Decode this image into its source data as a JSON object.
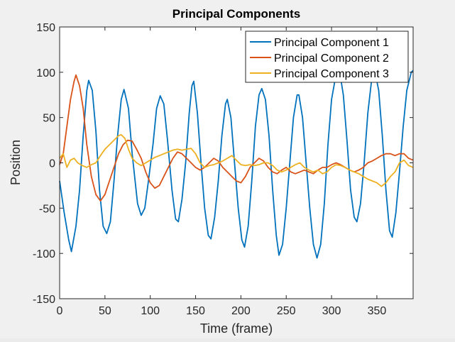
{
  "chart_data": {
    "type": "line",
    "title": "Principal Components",
    "xlabel": "Time (frame)",
    "ylabel": "Position",
    "xlim": [
      0,
      390
    ],
    "ylim": [
      -150,
      150
    ],
    "xticks": [
      0,
      50,
      100,
      150,
      200,
      250,
      300,
      350
    ],
    "yticks": [
      -150,
      -100,
      -50,
      0,
      50,
      100,
      150
    ],
    "grid": false,
    "legend_position": "top-right",
    "series": [
      {
        "name": "Principal Component 1",
        "color": "#0072bd",
        "points": [
          [
            0,
            -20
          ],
          [
            5,
            -55
          ],
          [
            10,
            -85
          ],
          [
            13,
            -98
          ],
          [
            18,
            -70
          ],
          [
            22,
            -30
          ],
          [
            26,
            30
          ],
          [
            30,
            80
          ],
          [
            32,
            91
          ],
          [
            36,
            80
          ],
          [
            40,
            35
          ],
          [
            44,
            -30
          ],
          [
            48,
            -70
          ],
          [
            52,
            -78
          ],
          [
            56,
            -65
          ],
          [
            60,
            -20
          ],
          [
            64,
            30
          ],
          [
            68,
            70
          ],
          [
            71,
            81
          ],
          [
            76,
            60
          ],
          [
            80,
            10
          ],
          [
            86,
            -45
          ],
          [
            90,
            -58
          ],
          [
            94,
            -50
          ],
          [
            98,
            -20
          ],
          [
            103,
            20
          ],
          [
            107,
            60
          ],
          [
            111,
            74
          ],
          [
            115,
            65
          ],
          [
            119,
            25
          ],
          [
            124,
            -30
          ],
          [
            128,
            -62
          ],
          [
            131,
            -65
          ],
          [
            135,
            -40
          ],
          [
            139,
            0
          ],
          [
            143,
            55
          ],
          [
            146,
            85
          ],
          [
            148,
            90
          ],
          [
            152,
            55
          ],
          [
            156,
            0
          ],
          [
            160,
            -50
          ],
          [
            164,
            -80
          ],
          [
            167,
            -84
          ],
          [
            171,
            -60
          ],
          [
            175,
            -20
          ],
          [
            179,
            30
          ],
          [
            183,
            65
          ],
          [
            185,
            70
          ],
          [
            189,
            50
          ],
          [
            193,
            0
          ],
          [
            197,
            -50
          ],
          [
            201,
            -85
          ],
          [
            204,
            -93
          ],
          [
            208,
            -70
          ],
          [
            212,
            -20
          ],
          [
            216,
            40
          ],
          [
            220,
            75
          ],
          [
            223,
            82
          ],
          [
            227,
            70
          ],
          [
            231,
            30
          ],
          [
            235,
            -30
          ],
          [
            239,
            -80
          ],
          [
            242,
            -102
          ],
          [
            246,
            -90
          ],
          [
            250,
            -50
          ],
          [
            254,
            0
          ],
          [
            258,
            50
          ],
          [
            262,
            75
          ],
          [
            264,
            75
          ],
          [
            268,
            50
          ],
          [
            272,
            0
          ],
          [
            276,
            -50
          ],
          [
            280,
            -90
          ],
          [
            284,
            -105
          ],
          [
            288,
            -90
          ],
          [
            292,
            -45
          ],
          [
            296,
            20
          ],
          [
            300,
            70
          ],
          [
            305,
            98
          ],
          [
            309,
            100
          ],
          [
            313,
            75
          ],
          [
            317,
            25
          ],
          [
            321,
            -30
          ],
          [
            325,
            -60
          ],
          [
            328,
            -65
          ],
          [
            332,
            -45
          ],
          [
            336,
            0
          ],
          [
            340,
            55
          ],
          [
            344,
            90
          ],
          [
            348,
            100
          ],
          [
            352,
            80
          ],
          [
            356,
            30
          ],
          [
            360,
            -30
          ],
          [
            364,
            -75
          ],
          [
            367,
            -82
          ],
          [
            371,
            -55
          ],
          [
            375,
            -10
          ],
          [
            379,
            40
          ],
          [
            383,
            80
          ],
          [
            388,
            100
          ],
          [
            390,
            102
          ]
        ]
      },
      {
        "name": "Principal Component 2",
        "color": "#d95319",
        "points": [
          [
            0,
            -2
          ],
          [
            4,
            10
          ],
          [
            8,
            40
          ],
          [
            12,
            70
          ],
          [
            16,
            90
          ],
          [
            18,
            97
          ],
          [
            22,
            85
          ],
          [
            26,
            60
          ],
          [
            30,
            20
          ],
          [
            35,
            -15
          ],
          [
            40,
            -35
          ],
          [
            45,
            -42
          ],
          [
            50,
            -35
          ],
          [
            55,
            -20
          ],
          [
            60,
            -5
          ],
          [
            65,
            10
          ],
          [
            70,
            20
          ],
          [
            75,
            25
          ],
          [
            80,
            24
          ],
          [
            85,
            15
          ],
          [
            90,
            5
          ],
          [
            95,
            -10
          ],
          [
            100,
            -22
          ],
          [
            105,
            -28
          ],
          [
            110,
            -25
          ],
          [
            115,
            -15
          ],
          [
            120,
            -5
          ],
          [
            125,
            5
          ],
          [
            130,
            12
          ],
          [
            135,
            10
          ],
          [
            140,
            5
          ],
          [
            145,
            0
          ],
          [
            150,
            -5
          ],
          [
            155,
            -8
          ],
          [
            160,
            -5
          ],
          [
            165,
            0
          ],
          [
            170,
            5
          ],
          [
            175,
            2
          ],
          [
            180,
            -5
          ],
          [
            185,
            -10
          ],
          [
            190,
            -15
          ],
          [
            195,
            -20
          ],
          [
            200,
            -22
          ],
          [
            205,
            -15
          ],
          [
            210,
            -5
          ],
          [
            215,
            0
          ],
          [
            220,
            5
          ],
          [
            225,
            2
          ],
          [
            230,
            -5
          ],
          [
            235,
            -10
          ],
          [
            240,
            -12
          ],
          [
            245,
            -8
          ],
          [
            250,
            -5
          ],
          [
            255,
            -10
          ],
          [
            260,
            -12
          ],
          [
            265,
            -10
          ],
          [
            270,
            -8
          ],
          [
            275,
            -10
          ],
          [
            280,
            -12
          ],
          [
            285,
            -8
          ],
          [
            290,
            -5
          ],
          [
            295,
            -5
          ],
          [
            300,
            -2
          ],
          [
            305,
            0
          ],
          [
            310,
            -2
          ],
          [
            315,
            -5
          ],
          [
            320,
            -8
          ],
          [
            325,
            -10
          ],
          [
            330,
            -8
          ],
          [
            335,
            -5
          ],
          [
            340,
            0
          ],
          [
            345,
            2
          ],
          [
            350,
            5
          ],
          [
            355,
            8
          ],
          [
            360,
            10
          ],
          [
            365,
            10
          ],
          [
            370,
            8
          ],
          [
            375,
            10
          ],
          [
            380,
            10
          ],
          [
            385,
            5
          ],
          [
            390,
            3
          ]
        ]
      },
      {
        "name": "Principal Component 3",
        "color": "#edb120",
        "points": [
          [
            0,
            5
          ],
          [
            4,
            10
          ],
          [
            8,
            -5
          ],
          [
            12,
            3
          ],
          [
            16,
            5
          ],
          [
            20,
            0
          ],
          [
            25,
            -3
          ],
          [
            30,
            -5
          ],
          [
            35,
            -2
          ],
          [
            40,
            0
          ],
          [
            45,
            8
          ],
          [
            50,
            15
          ],
          [
            55,
            20
          ],
          [
            60,
            25
          ],
          [
            65,
            30
          ],
          [
            68,
            31
          ],
          [
            72,
            27
          ],
          [
            76,
            15
          ],
          [
            80,
            5
          ],
          [
            85,
            0
          ],
          [
            90,
            -3
          ],
          [
            95,
            0
          ],
          [
            100,
            3
          ],
          [
            105,
            6
          ],
          [
            110,
            8
          ],
          [
            115,
            10
          ],
          [
            120,
            12
          ],
          [
            125,
            14
          ],
          [
            130,
            15
          ],
          [
            135,
            14
          ],
          [
            140,
            15
          ],
          [
            145,
            16
          ],
          [
            150,
            10
          ],
          [
            155,
            0
          ],
          [
            160,
            -5
          ],
          [
            165,
            -3
          ],
          [
            170,
            -2
          ],
          [
            175,
            0
          ],
          [
            180,
            2
          ],
          [
            185,
            5
          ],
          [
            190,
            8
          ],
          [
            195,
            3
          ],
          [
            200,
            -2
          ],
          [
            205,
            -3
          ],
          [
            210,
            -2
          ],
          [
            215,
            -3
          ],
          [
            220,
            -2
          ],
          [
            225,
            0
          ],
          [
            230,
            0
          ],
          [
            235,
            -3
          ],
          [
            240,
            -8
          ],
          [
            245,
            -10
          ],
          [
            250,
            -8
          ],
          [
            255,
            -5
          ],
          [
            260,
            -2
          ],
          [
            265,
            0
          ],
          [
            270,
            -5
          ],
          [
            275,
            -8
          ],
          [
            280,
            -10
          ],
          [
            285,
            -8
          ],
          [
            290,
            -12
          ],
          [
            295,
            -10
          ],
          [
            300,
            -5
          ],
          [
            305,
            -2
          ],
          [
            310,
            -3
          ],
          [
            315,
            -5
          ],
          [
            320,
            -8
          ],
          [
            325,
            -10
          ],
          [
            330,
            -12
          ],
          [
            335,
            -15
          ],
          [
            340,
            -18
          ],
          [
            345,
            -20
          ],
          [
            350,
            -22
          ],
          [
            355,
            -26
          ],
          [
            360,
            -22
          ],
          [
            365,
            -15
          ],
          [
            370,
            -10
          ],
          [
            375,
            0
          ],
          [
            380,
            3
          ],
          [
            385,
            -3
          ],
          [
            390,
            -5
          ]
        ]
      }
    ]
  }
}
